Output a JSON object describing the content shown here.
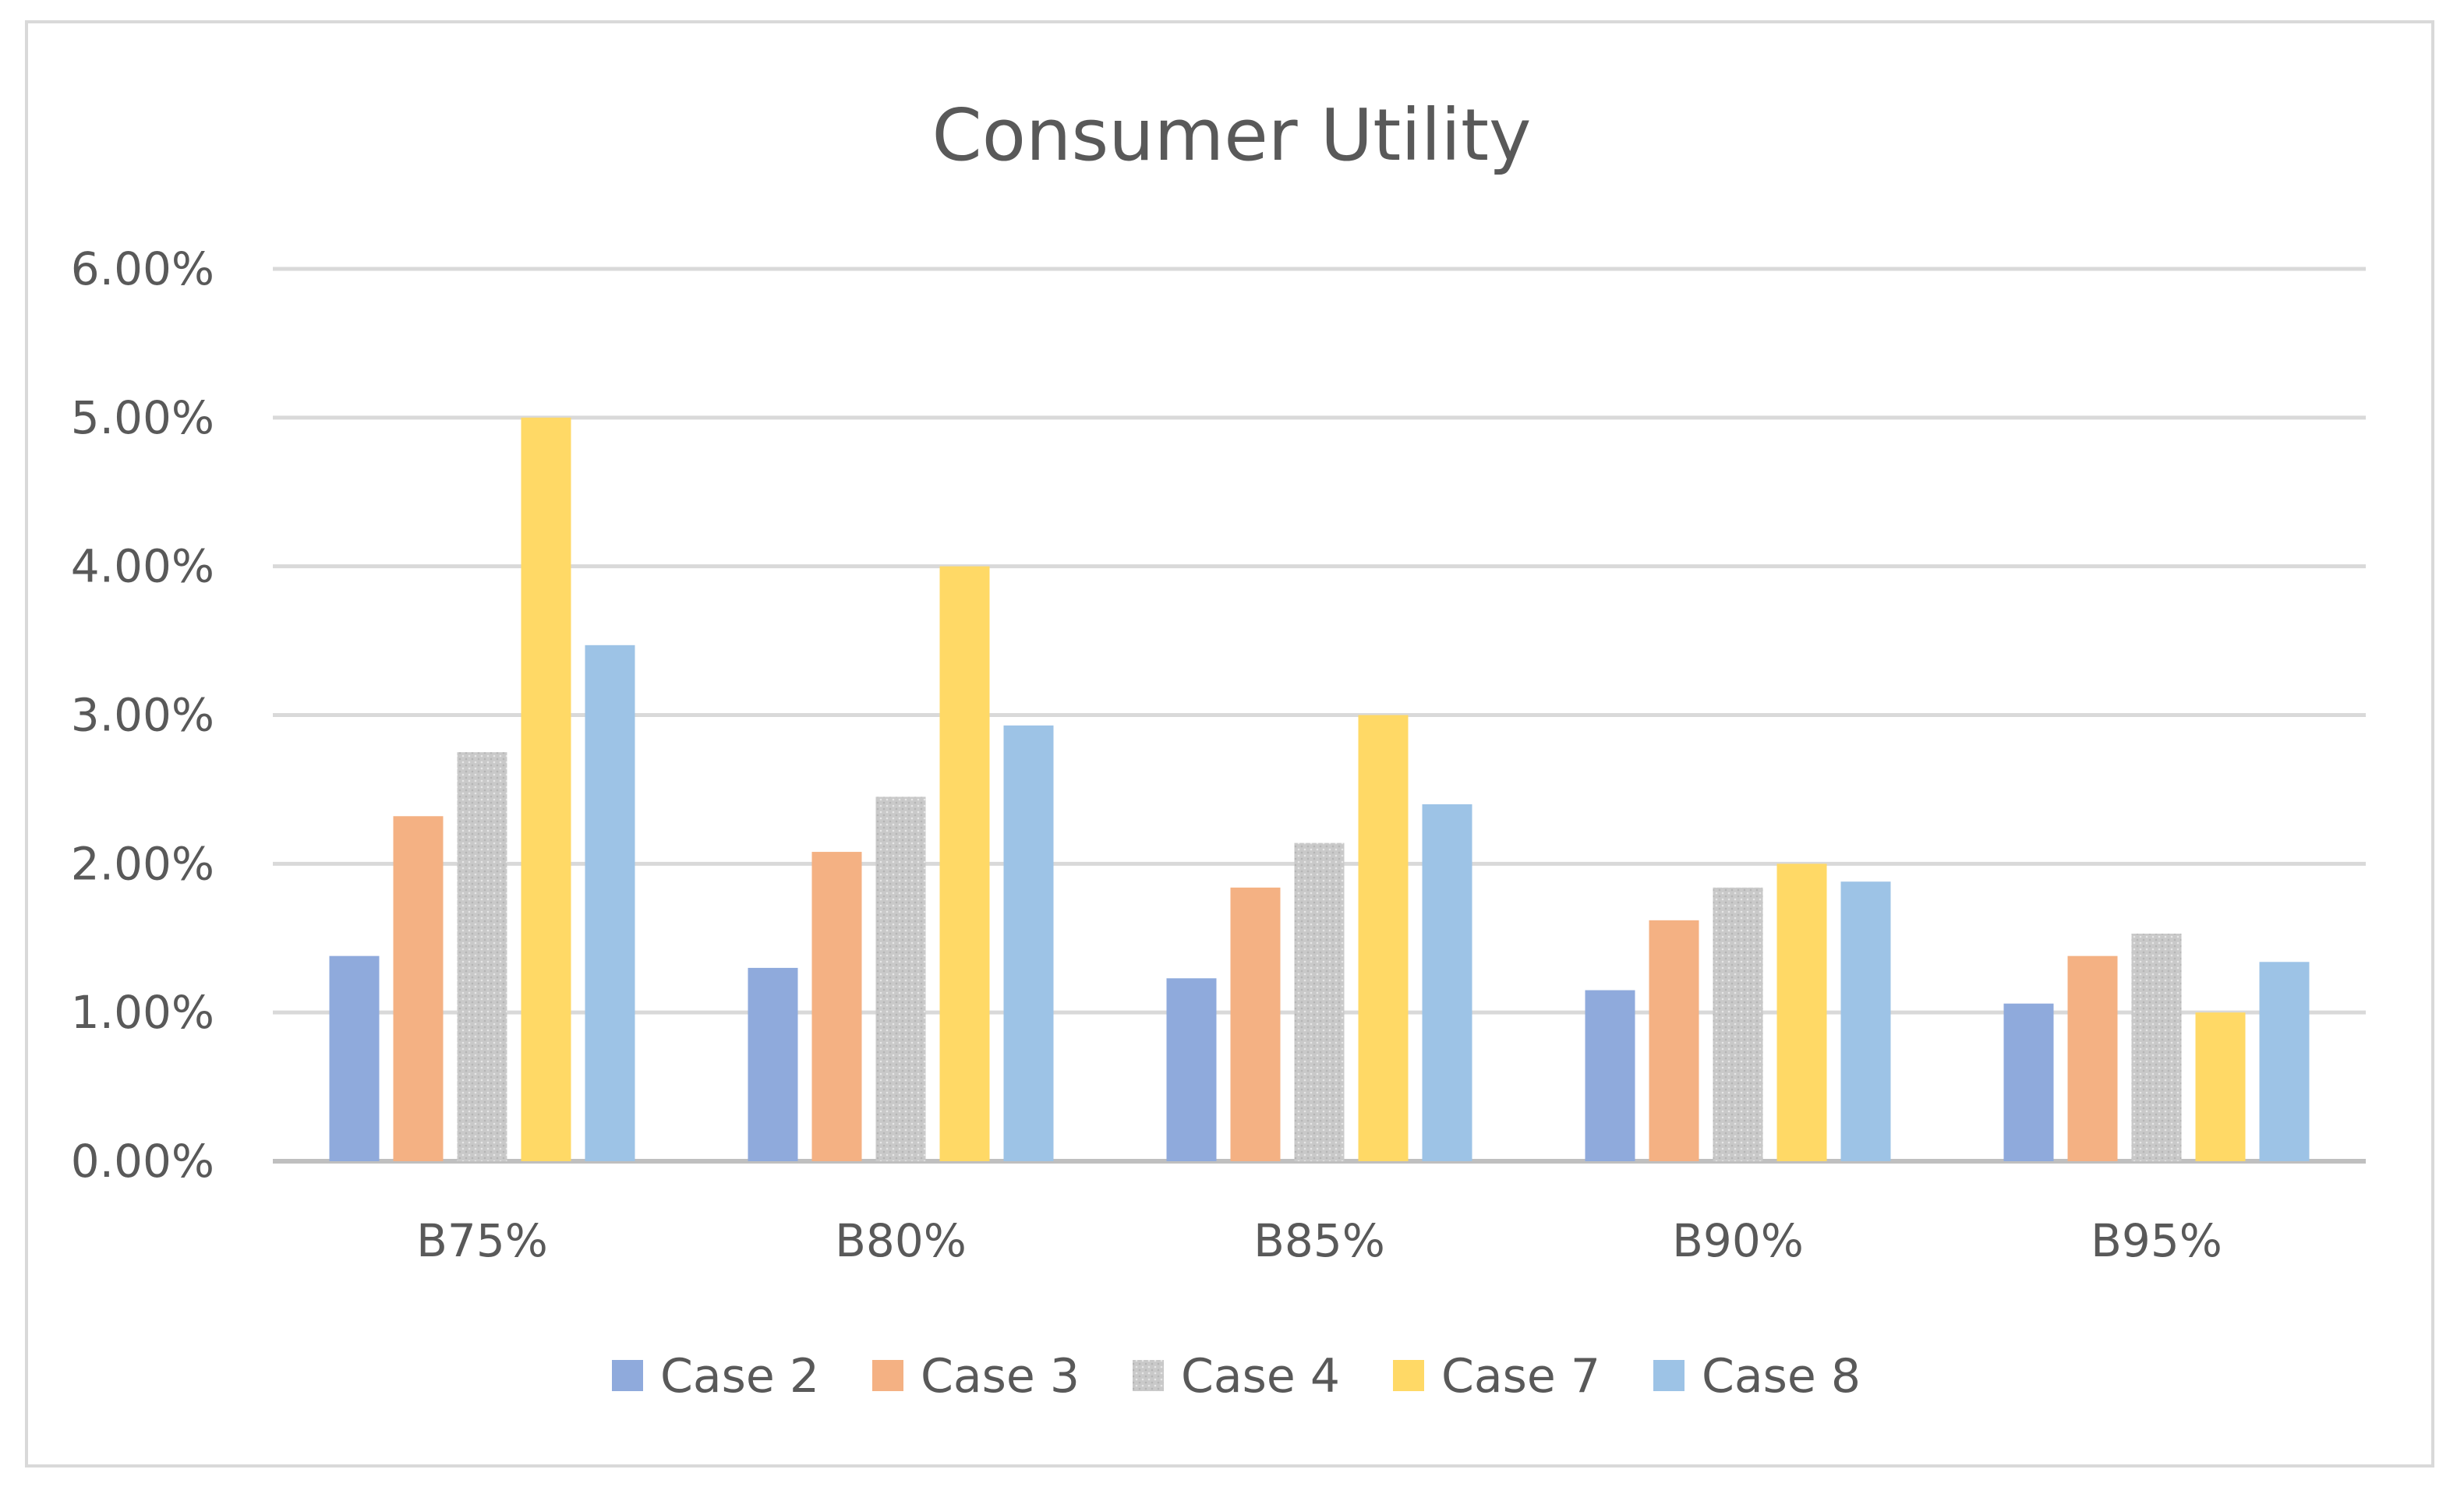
{
  "chart_data": {
    "type": "bar",
    "title": "Consumer Utility",
    "xlabel": "",
    "ylabel": "",
    "ylim": [
      0,
      6
    ],
    "y_tick_values": [
      0,
      1,
      2,
      3,
      4,
      5,
      6
    ],
    "y_tick_labels": [
      "0.00%",
      "1.00%",
      "2.00%",
      "3.00%",
      "4.00%",
      "5.00%",
      "6.00%"
    ],
    "categories": [
      "B75%",
      "B80%",
      "B85%",
      "B90%",
      "B95%"
    ],
    "series": [
      {
        "name": "Case 2",
        "color": "#8faadc",
        "values": [
          1.38,
          1.3,
          1.23,
          1.15,
          1.06
        ]
      },
      {
        "name": "Case 3",
        "color": "#f4b183",
        "values": [
          2.32,
          2.08,
          1.84,
          1.62,
          1.38
        ]
      },
      {
        "name": "Case 4",
        "color": "#c9c9c9",
        "values": [
          2.75,
          2.45,
          2.14,
          1.84,
          1.53
        ]
      },
      {
        "name": "Case 7",
        "color": "#ffd966",
        "values": [
          5.0,
          4.0,
          3.0,
          2.0,
          1.0
        ]
      },
      {
        "name": "Case 8",
        "color": "#9dc3e6",
        "values": [
          3.47,
          2.93,
          2.4,
          1.88,
          1.34
        ]
      }
    ],
    "grid": true,
    "legend_position": "bottom"
  }
}
